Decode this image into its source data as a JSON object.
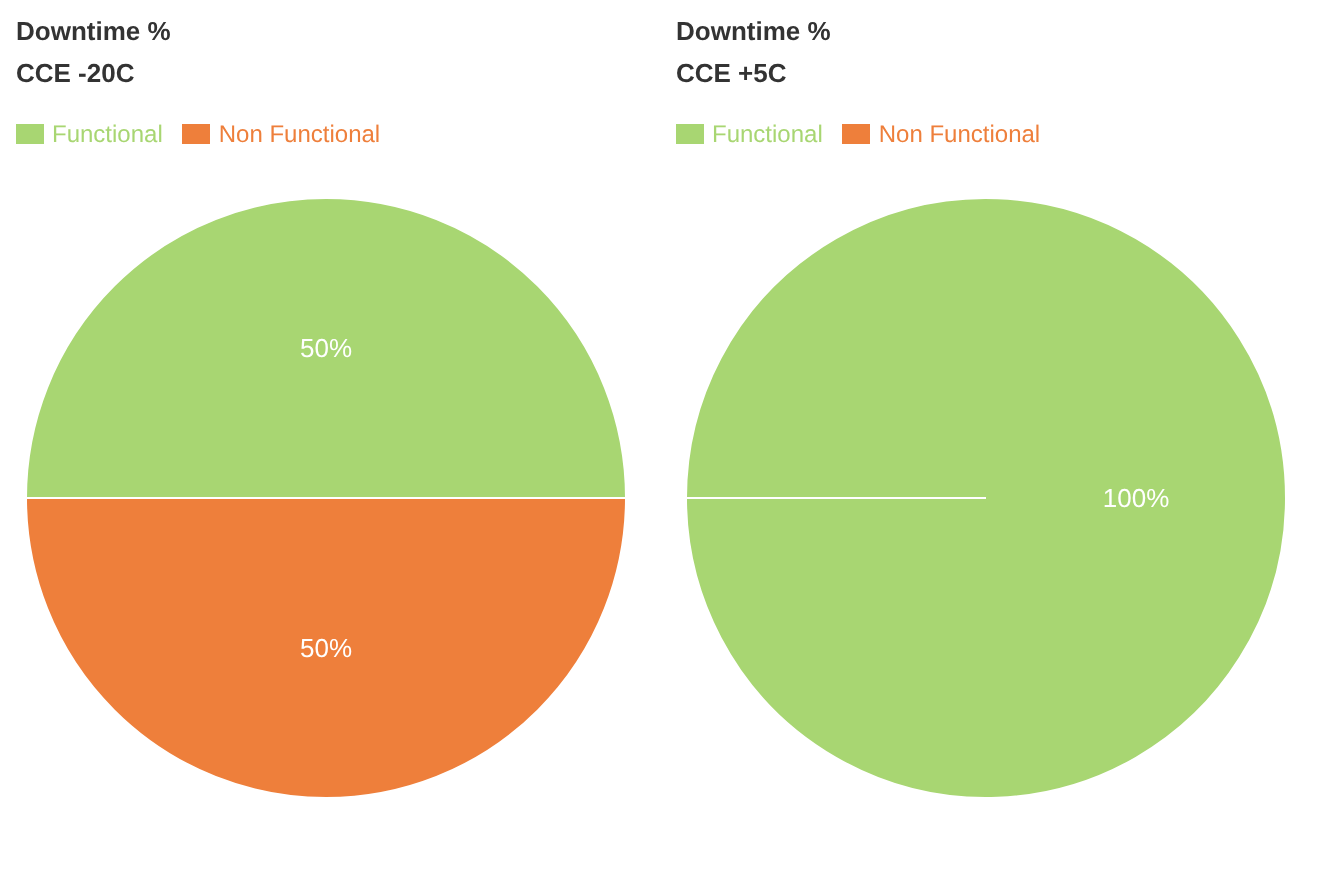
{
  "chart_data": [
    {
      "type": "pie",
      "title": "Downtime %",
      "subtitle": "CCE -20C",
      "categories": [
        "Functional",
        "Non Functional"
      ],
      "values": [
        50,
        50
      ],
      "colors": [
        "#a8d672",
        "#ee7f3b"
      ],
      "value_labels": [
        "50%",
        "50%"
      ],
      "legend": "top left"
    },
    {
      "type": "pie",
      "title": "Downtime %",
      "subtitle": "CCE +5C",
      "categories": [
        "Functional",
        "Non Functional"
      ],
      "values": [
        100,
        0
      ],
      "colors": [
        "#a8d672",
        "#ee7f3b"
      ],
      "value_labels": [
        "100%",
        null
      ],
      "legend": "top left"
    }
  ]
}
